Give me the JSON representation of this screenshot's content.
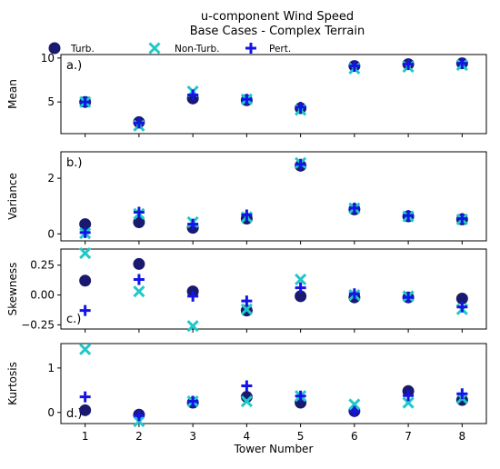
{
  "chart_data": {
    "type": "scatter",
    "title": "u-component Wind Speed",
    "subtitle": "Base Cases - Complex Terrain",
    "xlabel": "Tower Number",
    "x": [
      1,
      2,
      3,
      4,
      5,
      6,
      7,
      8
    ],
    "xticks": [
      "1",
      "2",
      "3",
      "4",
      "5",
      "6",
      "7",
      "8"
    ],
    "legend": {
      "placement": "top",
      "entries": [
        {
          "name": "Turb.",
          "marker": "circle",
          "color": "#191970"
        },
        {
          "name": "Non-Turb.",
          "marker": "x",
          "color": "#1fc8c8"
        },
        {
          "name": "Pert.",
          "marker": "plus",
          "color": "#1414e6"
        }
      ]
    },
    "panels": [
      {
        "label": "a.)",
        "ylabel": "Mean",
        "ylim": [
          1.4,
          10.4
        ],
        "yticks": [
          5,
          10
        ],
        "series": [
          {
            "name": "Turb.",
            "values": [
              5.0,
              2.7,
              5.4,
              5.2,
              4.3,
              9.1,
              9.3,
              9.4
            ]
          },
          {
            "name": "Non-Turb.",
            "values": [
              5.0,
              2.3,
              6.2,
              5.3,
              4.1,
              8.8,
              9.0,
              9.2
            ]
          },
          {
            "name": "Pert.",
            "values": [
              5.0,
              2.6,
              5.8,
              5.3,
              4.4,
              9.1,
              9.3,
              9.4
            ]
          }
        ]
      },
      {
        "label": "b.)",
        "ylabel": "Variance",
        "ylim": [
          -0.25,
          2.95
        ],
        "yticks": [
          0,
          2
        ],
        "series": [
          {
            "name": "Turb.",
            "values": [
              0.35,
              0.42,
              0.22,
              0.55,
              2.45,
              0.88,
              0.63,
              0.52
            ]
          },
          {
            "name": "Non-Turb.",
            "values": [
              0.02,
              0.72,
              0.42,
              0.6,
              2.55,
              0.92,
              0.63,
              0.52
            ]
          },
          {
            "name": "Pert.",
            "values": [
              0.05,
              0.78,
              0.35,
              0.68,
              2.5,
              0.93,
              0.66,
              0.55
            ]
          }
        ]
      },
      {
        "label": "c.)",
        "ylabel": "Skewness",
        "ylim": [
          -0.285,
          0.385
        ],
        "yticks": [
          0.25,
          0.0,
          -0.25
        ],
        "yticklabels": [
          "0.25",
          "0.00",
          "−0.25"
        ],
        "series": [
          {
            "name": "Turb.",
            "values": [
              0.12,
              0.26,
              0.03,
              -0.13,
              -0.01,
              -0.02,
              -0.02,
              -0.03
            ]
          },
          {
            "name": "Non-Turb.",
            "values": [
              0.35,
              0.03,
              -0.26,
              -0.12,
              0.13,
              0.0,
              -0.01,
              -0.12
            ]
          },
          {
            "name": "Pert.",
            "values": [
              -0.13,
              0.13,
              -0.01,
              -0.05,
              0.06,
              0.01,
              -0.02,
              -0.1
            ]
          }
        ]
      },
      {
        "label": "d.)",
        "ylabel": "Kurtosis",
        "ylim": [
          -0.25,
          1.55
        ],
        "yticks": [
          0,
          1
        ],
        "series": [
          {
            "name": "Turb.",
            "values": [
              0.05,
              -0.05,
              0.22,
              0.35,
              0.22,
              0.03,
              0.48,
              0.28
            ]
          },
          {
            "name": "Non-Turb.",
            "values": [
              1.42,
              -0.2,
              0.25,
              0.25,
              0.37,
              0.18,
              0.22,
              0.32
            ]
          },
          {
            "name": "Pert.",
            "values": [
              0.35,
              -0.07,
              0.25,
              0.6,
              0.37,
              0.02,
              0.38,
              0.42
            ]
          }
        ]
      }
    ]
  }
}
